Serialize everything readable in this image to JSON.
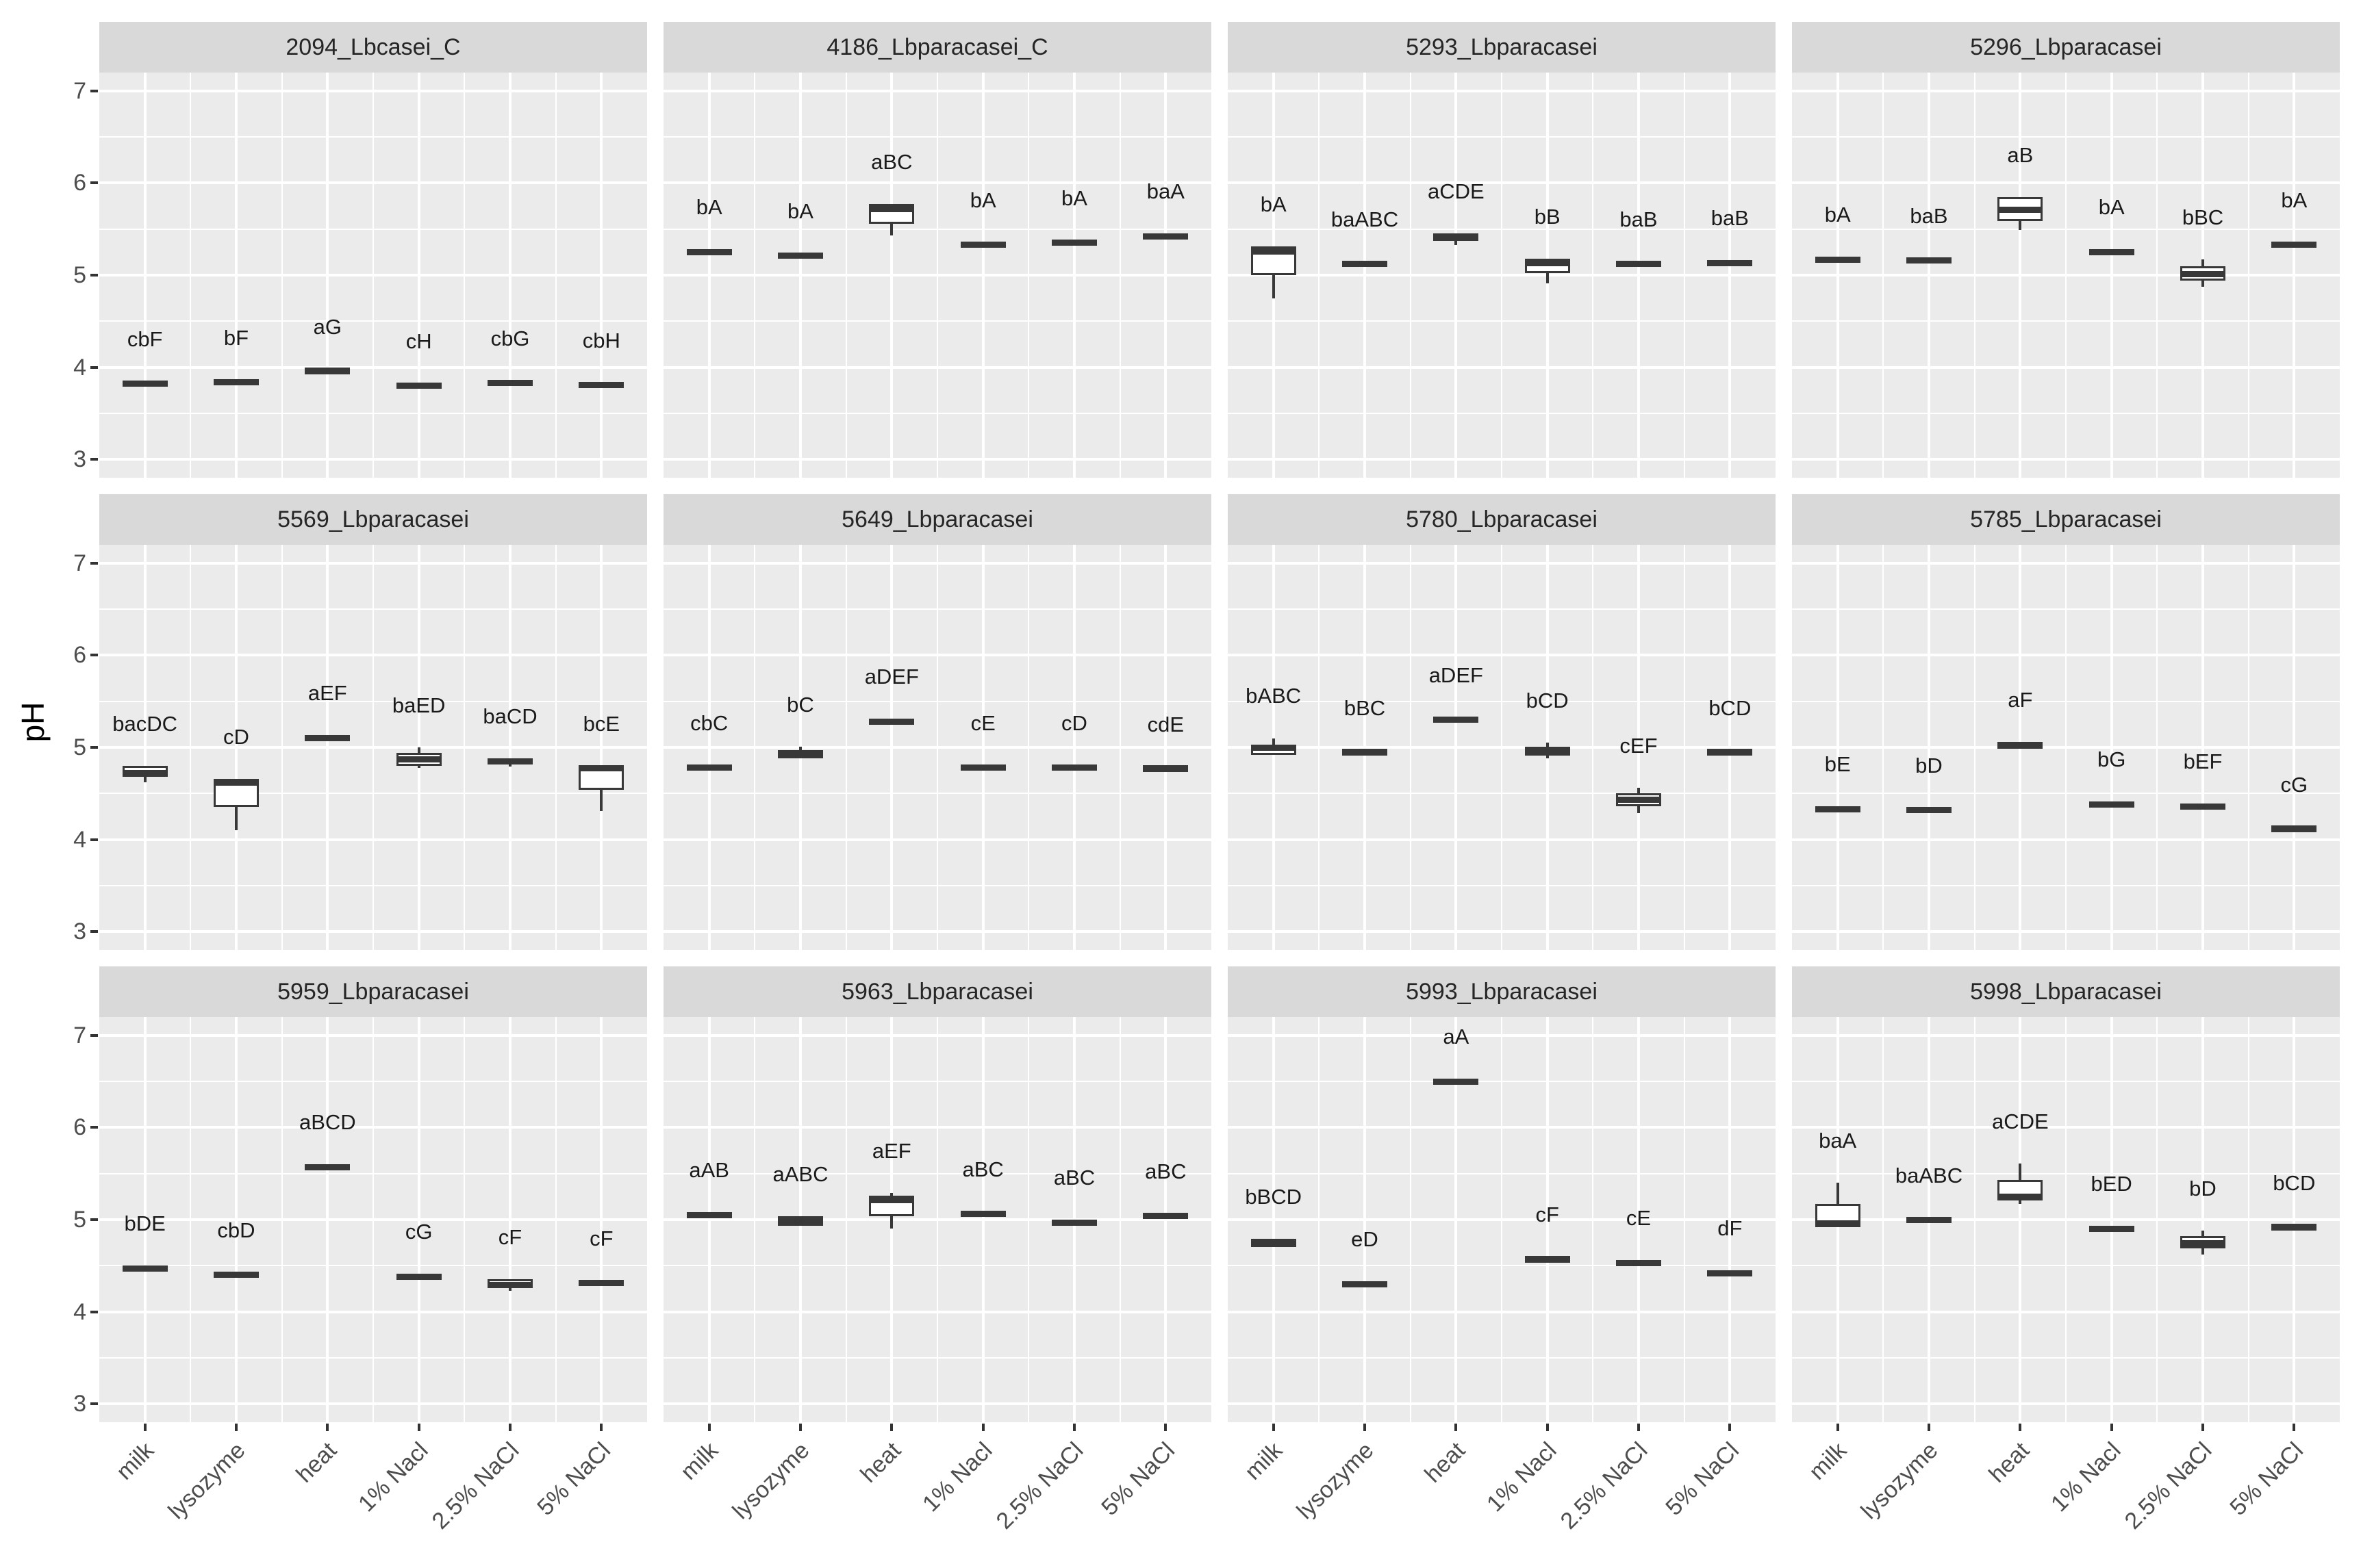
{
  "y_axis": {
    "title": "pH",
    "ticks": [
      7,
      6,
      5,
      4,
      3
    ],
    "domain_min": 2.8,
    "domain_max": 7.2
  },
  "x_axis": {
    "categories": [
      "milk",
      "lysozyme",
      "heat",
      "1% Nacl",
      "2.5% NaCl",
      "5% NaCl"
    ]
  },
  "colors": {
    "background": "#FFFFFF",
    "panel_bg": "#EBEBEB",
    "strip_bg": "#D9D9D9",
    "grid": "#FFFFFF",
    "box_stroke": "#383838",
    "axis_text": "#4D4D4D",
    "strip_text": "#262626",
    "sig_text": "#1A1A1A"
  },
  "chart_data": {
    "type": "boxplot",
    "facet_rows": 3,
    "facet_cols": 4,
    "ylabel": "pH",
    "ylim": [
      2.8,
      7.2
    ],
    "categories": [
      "milk",
      "lysozyme",
      "heat",
      "1% Nacl",
      "2.5% NaCl",
      "5% NaCl"
    ],
    "facets": [
      {
        "title": "2094_Lbcasei_C",
        "boxes": [
          {
            "category": "milk",
            "sig": "cbF",
            "median": 3.82,
            "q1": 3.8,
            "q3": 3.85,
            "lo": null,
            "hi": null
          },
          {
            "category": "lysozyme",
            "sig": "bF",
            "median": 3.84,
            "q1": 3.815,
            "q3": 3.865,
            "lo": null,
            "hi": null
          },
          {
            "category": "heat",
            "sig": "aG",
            "median": 3.96,
            "q1": 3.935,
            "q3": 3.985,
            "lo": null,
            "hi": null
          },
          {
            "category": "1% Nacl",
            "sig": "cH",
            "median": 3.8,
            "q1": 3.775,
            "q3": 3.825,
            "lo": null,
            "hi": null
          },
          {
            "category": "2.5% NaCl",
            "sig": "cbG",
            "median": 3.83,
            "q1": 3.805,
            "q3": 3.855,
            "lo": null,
            "hi": null
          },
          {
            "category": "5% NaCl",
            "sig": "cbH",
            "median": 3.81,
            "q1": 3.785,
            "q3": 3.835,
            "lo": null,
            "hi": null
          }
        ]
      },
      {
        "title": "4186_Lbparacasei_C",
        "boxes": [
          {
            "category": "milk",
            "sig": "bA",
            "median": 5.25,
            "q1": 5.22,
            "q3": 5.28,
            "lo": null,
            "hi": null
          },
          {
            "category": "lysozyme",
            "sig": "bA",
            "median": 5.21,
            "q1": 5.18,
            "q3": 5.24,
            "lo": null,
            "hi": null
          },
          {
            "category": "heat",
            "sig": "aBC",
            "median": 5.72,
            "q1": 5.56,
            "q3": 5.77,
            "lo": 5.43,
            "hi": null
          },
          {
            "category": "1% Nacl",
            "sig": "bA",
            "median": 5.33,
            "q1": 5.31,
            "q3": 5.36,
            "lo": null,
            "hi": null
          },
          {
            "category": "2.5% NaCl",
            "sig": "bA",
            "median": 5.35,
            "q1": 5.33,
            "q3": 5.38,
            "lo": null,
            "hi": null
          },
          {
            "category": "5% NaCl",
            "sig": "baA",
            "median": 5.42,
            "q1": 5.4,
            "q3": 5.45,
            "lo": null,
            "hi": null
          }
        ]
      },
      {
        "title": "5293_Lbparacasei",
        "boxes": [
          {
            "category": "milk",
            "sig": "bA",
            "median": 5.26,
            "q1": 5.0,
            "q3": 5.31,
            "lo": 4.75,
            "hi": null
          },
          {
            "category": "lysozyme",
            "sig": "baABC",
            "median": 5.12,
            "q1": 5.09,
            "q3": 5.15,
            "lo": null,
            "hi": null
          },
          {
            "category": "heat",
            "sig": "aCDE",
            "median": 5.41,
            "q1": 5.37,
            "q3": 5.45,
            "lo": 5.33,
            "hi": null
          },
          {
            "category": "1% Nacl",
            "sig": "bB",
            "median": 5.13,
            "q1": 5.02,
            "q3": 5.18,
            "lo": 4.91,
            "hi": null
          },
          {
            "category": "2.5% NaCl",
            "sig": "baB",
            "median": 5.12,
            "q1": 5.09,
            "q3": 5.15,
            "lo": null,
            "hi": null
          },
          {
            "category": "5% NaCl",
            "sig": "baB",
            "median": 5.13,
            "q1": 5.1,
            "q3": 5.16,
            "lo": null,
            "hi": null
          }
        ]
      },
      {
        "title": "5296_Lbparacasei",
        "boxes": [
          {
            "category": "milk",
            "sig": "bA",
            "median": 5.17,
            "q1": 5.14,
            "q3": 5.2,
            "lo": null,
            "hi": null
          },
          {
            "category": "lysozyme",
            "sig": "baB",
            "median": 5.16,
            "q1": 5.135,
            "q3": 5.185,
            "lo": null,
            "hi": null
          },
          {
            "category": "heat",
            "sig": "aB",
            "median": 5.71,
            "q1": 5.59,
            "q3": 5.85,
            "lo": 5.49,
            "hi": null
          },
          {
            "category": "1% Nacl",
            "sig": "bA",
            "median": 5.25,
            "q1": 5.23,
            "q3": 5.28,
            "lo": null,
            "hi": null
          },
          {
            "category": "2.5% NaCl",
            "sig": "bBC",
            "median": 5.01,
            "q1": 4.94,
            "q3": 5.1,
            "lo": 4.87,
            "hi": 5.17
          },
          {
            "category": "5% NaCl",
            "sig": "bA",
            "median": 5.33,
            "q1": 5.31,
            "q3": 5.36,
            "lo": null,
            "hi": null
          }
        ]
      },
      {
        "title": "5569_Lbparacasei",
        "boxes": [
          {
            "category": "milk",
            "sig": "bacDC",
            "median": 4.72,
            "q1": 4.68,
            "q3": 4.8,
            "lo": 4.62,
            "hi": null
          },
          {
            "category": "lysozyme",
            "sig": "cD",
            "median": 4.62,
            "q1": 4.35,
            "q3": 4.66,
            "lo": 4.1,
            "hi": null
          },
          {
            "category": "heat",
            "sig": "aEF",
            "median": 5.1,
            "q1": 5.08,
            "q3": 5.13,
            "lo": null,
            "hi": null
          },
          {
            "category": "1% Nacl",
            "sig": "baED",
            "median": 4.87,
            "q1": 4.8,
            "q3": 4.94,
            "lo": 4.78,
            "hi": 5.0
          },
          {
            "category": "2.5% NaCl",
            "sig": "baCD",
            "median": 4.85,
            "q1": 4.82,
            "q3": 4.88,
            "lo": 4.79,
            "hi": null
          },
          {
            "category": "5% NaCl",
            "sig": "bcE",
            "median": 4.77,
            "q1": 4.54,
            "q3": 4.8,
            "lo": 4.31,
            "hi": null
          }
        ]
      },
      {
        "title": "5649_Lbparacasei",
        "boxes": [
          {
            "category": "milk",
            "sig": "cbC",
            "median": 4.78,
            "q1": 4.755,
            "q3": 4.805,
            "lo": null,
            "hi": null
          },
          {
            "category": "lysozyme",
            "sig": "bC",
            "median": 4.93,
            "q1": 4.88,
            "q3": 4.97,
            "lo": null,
            "hi": 5.01
          },
          {
            "category": "heat",
            "sig": "aDEF",
            "median": 5.28,
            "q1": 5.255,
            "q3": 5.31,
            "lo": null,
            "hi": null
          },
          {
            "category": "1% Nacl",
            "sig": "cE",
            "median": 4.78,
            "q1": 4.755,
            "q3": 4.805,
            "lo": null,
            "hi": null
          },
          {
            "category": "2.5% NaCl",
            "sig": "cD",
            "median": 4.78,
            "q1": 4.755,
            "q3": 4.805,
            "lo": null,
            "hi": null
          },
          {
            "category": "5% NaCl",
            "sig": "cdE",
            "median": 4.77,
            "q1": 4.745,
            "q3": 4.795,
            "lo": null,
            "hi": null
          }
        ]
      },
      {
        "title": "5780_Lbparacasei",
        "boxes": [
          {
            "category": "milk",
            "sig": "bABC",
            "median": 5.0,
            "q1": 4.92,
            "q3": 5.03,
            "lo": null,
            "hi": 5.1
          },
          {
            "category": "lysozyme",
            "sig": "bBC",
            "median": 4.95,
            "q1": 4.92,
            "q3": 4.97,
            "lo": null,
            "hi": null
          },
          {
            "category": "heat",
            "sig": "aDEF",
            "median": 5.3,
            "q1": 5.275,
            "q3": 5.325,
            "lo": null,
            "hi": null
          },
          {
            "category": "1% Nacl",
            "sig": "bCD",
            "median": 4.96,
            "q1": 4.91,
            "q3": 5.01,
            "lo": 4.88,
            "hi": 5.05
          },
          {
            "category": "2.5% NaCl",
            "sig": "cEF",
            "median": 4.43,
            "q1": 4.36,
            "q3": 4.5,
            "lo": 4.29,
            "hi": 4.56
          },
          {
            "category": "5% NaCl",
            "sig": "bCD",
            "median": 4.95,
            "q1": 4.93,
            "q3": 4.97,
            "lo": null,
            "hi": null
          }
        ]
      },
      {
        "title": "5785_Lbparacasei",
        "boxes": [
          {
            "category": "milk",
            "sig": "bE",
            "median": 4.33,
            "q1": 4.31,
            "q3": 4.36,
            "lo": null,
            "hi": null
          },
          {
            "category": "lysozyme",
            "sig": "bD",
            "median": 4.32,
            "q1": 4.3,
            "q3": 4.345,
            "lo": null,
            "hi": null
          },
          {
            "category": "heat",
            "sig": "aF",
            "median": 5.02,
            "q1": 4.99,
            "q3": 5.06,
            "lo": null,
            "hi": null
          },
          {
            "category": "1% Nacl",
            "sig": "bG",
            "median": 4.38,
            "q1": 4.355,
            "q3": 4.41,
            "lo": null,
            "hi": null
          },
          {
            "category": "2.5% NaCl",
            "sig": "bEF",
            "median": 4.36,
            "q1": 4.34,
            "q3": 4.39,
            "lo": null,
            "hi": null
          },
          {
            "category": "5% NaCl",
            "sig": "cG",
            "median": 4.12,
            "q1": 4.1,
            "q3": 4.14,
            "lo": null,
            "hi": null
          }
        ]
      },
      {
        "title": "5959_Lbparacasei",
        "boxes": [
          {
            "category": "milk",
            "sig": "bDE",
            "median": 4.47,
            "q1": 4.45,
            "q3": 4.5,
            "lo": null,
            "hi": null
          },
          {
            "category": "lysozyme",
            "sig": "cbD",
            "median": 4.4,
            "q1": 4.38,
            "q3": 4.43,
            "lo": null,
            "hi": null
          },
          {
            "category": "heat",
            "sig": "aBCD",
            "median": 5.57,
            "q1": 5.545,
            "q3": 5.6,
            "lo": null,
            "hi": null
          },
          {
            "category": "1% Nacl",
            "sig": "cG",
            "median": 4.38,
            "q1": 4.355,
            "q3": 4.41,
            "lo": null,
            "hi": null
          },
          {
            "category": "2.5% NaCl",
            "sig": "cF",
            "median": 4.29,
            "q1": 4.26,
            "q3": 4.35,
            "lo": 4.23,
            "hi": null
          },
          {
            "category": "5% NaCl",
            "sig": "cF",
            "median": 4.31,
            "q1": 4.28,
            "q3": 4.34,
            "lo": null,
            "hi": null
          }
        ]
      },
      {
        "title": "5963_Lbparacasei",
        "boxes": [
          {
            "category": "milk",
            "sig": "aAB",
            "median": 5.05,
            "q1": 5.03,
            "q3": 5.08,
            "lo": null,
            "hi": null
          },
          {
            "category": "lysozyme",
            "sig": "aABC",
            "median": 4.99,
            "q1": 4.93,
            "q3": 5.04,
            "lo": null,
            "hi": null
          },
          {
            "category": "heat",
            "sig": "aEF",
            "median": 5.21,
            "q1": 5.04,
            "q3": 5.26,
            "lo": 4.9,
            "hi": 5.29
          },
          {
            "category": "1% Nacl",
            "sig": "aBC",
            "median": 5.06,
            "q1": 5.03,
            "q3": 5.09,
            "lo": null,
            "hi": null
          },
          {
            "category": "2.5% NaCl",
            "sig": "aBC",
            "median": 4.97,
            "q1": 4.93,
            "q3": 5.0,
            "lo": null,
            "hi": null
          },
          {
            "category": "5% NaCl",
            "sig": "aBC",
            "median": 5.04,
            "q1": 5.02,
            "q3": 5.07,
            "lo": null,
            "hi": null
          }
        ]
      },
      {
        "title": "5993_Lbparacasei",
        "boxes": [
          {
            "category": "milk",
            "sig": "bBCD",
            "median": 4.74,
            "q1": 4.7,
            "q3": 4.79,
            "lo": null,
            "hi": null
          },
          {
            "category": "lysozyme",
            "sig": "eD",
            "median": 4.3,
            "q1": 4.27,
            "q3": 4.33,
            "lo": null,
            "hi": null
          },
          {
            "category": "heat",
            "sig": "aA",
            "median": 6.5,
            "q1": 6.475,
            "q3": 6.53,
            "lo": null,
            "hi": null
          },
          {
            "category": "1% Nacl",
            "sig": "cF",
            "median": 4.57,
            "q1": 4.53,
            "q3": 4.6,
            "lo": null,
            "hi": null
          },
          {
            "category": "2.5% NaCl",
            "sig": "cE",
            "median": 4.53,
            "q1": 4.5,
            "q3": 4.56,
            "lo": null,
            "hi": null
          },
          {
            "category": "5% NaCl",
            "sig": "dF",
            "median": 4.42,
            "q1": 4.39,
            "q3": 4.45,
            "lo": null,
            "hi": null
          }
        ]
      },
      {
        "title": "5998_Lbparacasei",
        "boxes": [
          {
            "category": "milk",
            "sig": "baA",
            "median": 4.96,
            "q1": 4.92,
            "q3": 5.17,
            "lo": null,
            "hi": 5.4
          },
          {
            "category": "lysozyme",
            "sig": "baABC",
            "median": 5.0,
            "q1": 4.97,
            "q3": 5.02,
            "lo": null,
            "hi": null
          },
          {
            "category": "heat",
            "sig": "aCDE",
            "median": 5.25,
            "q1": 5.21,
            "q3": 5.43,
            "lo": 5.17,
            "hi": 5.61
          },
          {
            "category": "1% Nacl",
            "sig": "bED",
            "median": 4.9,
            "q1": 4.87,
            "q3": 4.93,
            "lo": null,
            "hi": null
          },
          {
            "category": "2.5% NaCl",
            "sig": "bD",
            "median": 4.74,
            "q1": 4.69,
            "q3": 4.82,
            "lo": 4.62,
            "hi": 4.88
          },
          {
            "category": "5% NaCl",
            "sig": "bCD",
            "median": 4.92,
            "q1": 4.9,
            "q3": 4.94,
            "lo": null,
            "hi": null
          }
        ]
      }
    ]
  }
}
